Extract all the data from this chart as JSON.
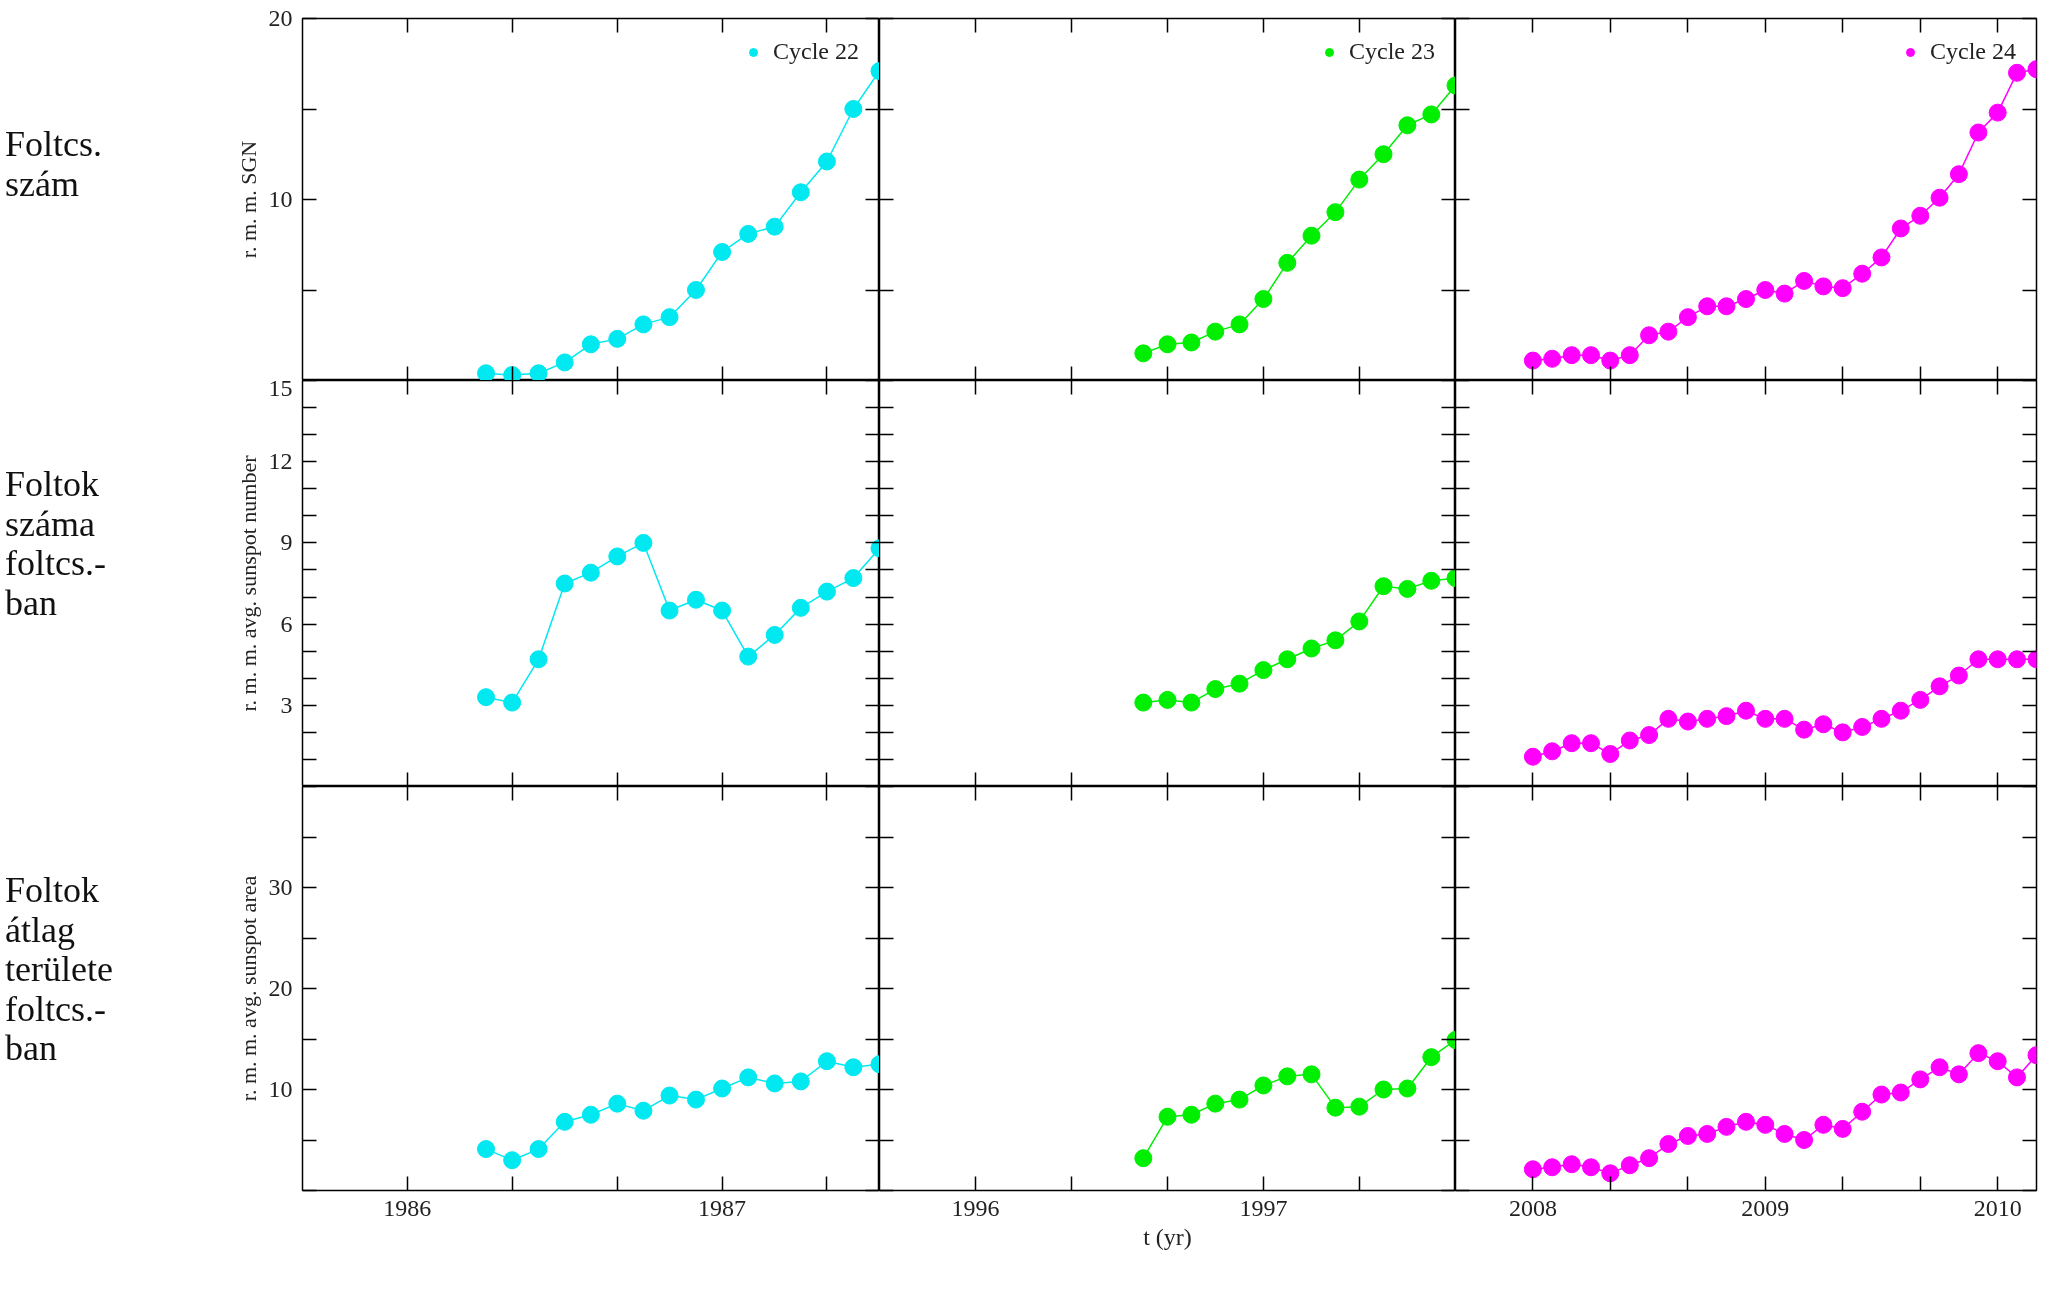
{
  "chart_data": [
    {
      "type": "line",
      "ylabel": "r. m. m. SGN",
      "annotations": [
        "Foltcs. szám"
      ],
      "marker": "circle",
      "grid": false,
      "legend": "top right",
      "tick_labels": "y",
      "xlim": [
        1985.667,
        1987.5
      ],
      "ylim": [
        0,
        20
      ],
      "xticks": [
        1986,
        {
          "value": 1986.333,
          "label": null
        },
        {
          "value": 1986.667,
          "label": null
        },
        1987,
        {
          "value": 1987.333,
          "label": null
        }
      ],
      "yticks": [
        {
          "value": 0,
          "label": null
        },
        {
          "value": 5,
          "label": null
        },
        10,
        {
          "value": 15,
          "label": null
        },
        20
      ],
      "x": [
        1986.25,
        1986.333,
        1986.417,
        1986.5,
        1986.583,
        1986.667,
        1986.75,
        1986.833,
        1986.917,
        1987,
        1987.083,
        1987.167,
        1987.25,
        1987.333,
        1987.417,
        1987.5
      ],
      "series": [
        {
          "name": "Cycle 22",
          "color": "#00e8f0",
          "values": [
            0.4,
            0.3,
            0.4,
            1.0,
            2.0,
            2.3,
            3.1,
            3.5,
            5.0,
            7.1,
            8.1,
            8.5,
            10.4,
            12.1,
            15.0,
            17.1
          ]
        }
      ]
    },
    {
      "type": "line",
      "marker": "circle",
      "grid": false,
      "legend": "top right",
      "tick_labels": false,
      "xlim": [
        1995.667,
        1997.667
      ],
      "ylim": [
        0,
        20
      ],
      "xticks": [
        1996,
        {
          "value": 1996.333,
          "label": null
        },
        {
          "value": 1996.667,
          "label": null
        },
        1997,
        {
          "value": 1997.333,
          "label": null
        }
      ],
      "yticks": [
        {
          "value": 0,
          "label": null
        },
        {
          "value": 5,
          "label": null
        },
        10,
        {
          "value": 15,
          "label": null
        },
        20
      ],
      "x": [
        1996.583,
        1996.667,
        1996.75,
        1996.833,
        1996.917,
        1997,
        1997.083,
        1997.167,
        1997.25,
        1997.333,
        1997.417,
        1997.5,
        1997.583,
        1997.667
      ],
      "series": [
        {
          "name": "Cycle 23",
          "color": "#00ee00",
          "values": [
            1.5,
            2.0,
            2.1,
            2.7,
            3.1,
            4.5,
            6.5,
            8.0,
            9.3,
            11.1,
            12.5,
            14.1,
            14.7,
            16.3
          ]
        }
      ]
    },
    {
      "type": "line",
      "marker": "circle",
      "grid": false,
      "legend": "top right",
      "tick_labels": false,
      "xlim": [
        2007.667,
        2010.167
      ],
      "ylim": [
        0,
        20
      ],
      "xticks": [
        2008,
        {
          "value": 2008.333,
          "label": null
        },
        {
          "value": 2008.667,
          "label": null
        },
        2009,
        {
          "value": 2009.333,
          "label": null
        },
        {
          "value": 2009.667,
          "label": null
        },
        2010
      ],
      "yticks": [
        {
          "value": 0,
          "label": null
        },
        {
          "value": 5,
          "label": null
        },
        10,
        {
          "value": 15,
          "label": null
        },
        20
      ],
      "x": [
        2008,
        2008.083,
        2008.167,
        2008.25,
        2008.333,
        2008.417,
        2008.5,
        2008.583,
        2008.667,
        2008.75,
        2008.833,
        2008.917,
        2009,
        2009.083,
        2009.167,
        2009.25,
        2009.333,
        2009.417,
        2009.5,
        2009.583,
        2009.667,
        2009.75,
        2009.833,
        2009.917,
        2010,
        2010.083,
        2010.167
      ],
      "series": [
        {
          "name": "Cycle 24",
          "color": "#ff00ff",
          "values": [
            1.1,
            1.2,
            1.4,
            1.4,
            1.1,
            1.4,
            2.5,
            2.7,
            3.5,
            4.1,
            4.1,
            4.5,
            5.0,
            4.8,
            5.5,
            5.2,
            5.1,
            5.9,
            6.8,
            8.4,
            9.1,
            10.1,
            11.4,
            13.7,
            14.8,
            17.0,
            17.2
          ]
        }
      ]
    },
    {
      "type": "line",
      "ylabel": "r. m. m. avg. sunspot number",
      "annotations": [
        "Foltok száma foltcs.-ban"
      ],
      "marker": "circle",
      "grid": false,
      "tick_labels": "y",
      "xlim": [
        1985.667,
        1987.5
      ],
      "ylim": [
        0,
        15
      ],
      "xticks": [
        1986,
        {
          "value": 1986.333,
          "label": null
        },
        {
          "value": 1986.667,
          "label": null
        },
        1987,
        {
          "value": 1987.333,
          "label": null
        }
      ],
      "yticks": [
        {
          "value": 0,
          "label": null
        },
        {
          "value": 1,
          "label": null
        },
        {
          "value": 2,
          "label": null
        },
        3,
        {
          "value": 4,
          "label": null
        },
        {
          "value": 5,
          "label": null
        },
        6,
        {
          "value": 7,
          "label": null
        },
        {
          "value": 8,
          "label": null
        },
        9,
        {
          "value": 10,
          "label": null
        },
        {
          "value": 11,
          "label": null
        },
        12,
        {
          "value": 13,
          "label": null
        },
        {
          "value": 14,
          "label": null
        },
        15
      ],
      "x": [
        1986.25,
        1986.333,
        1986.417,
        1986.5,
        1986.583,
        1986.667,
        1986.75,
        1986.833,
        1986.917,
        1987,
        1987.083,
        1987.167,
        1987.25,
        1987.333,
        1987.417,
        1987.5
      ],
      "series": [
        {
          "color": "#00e8f0",
          "values": [
            3.3,
            3.1,
            4.7,
            7.5,
            7.9,
            8.5,
            9.0,
            6.5,
            6.9,
            6.5,
            4.8,
            5.6,
            6.6,
            7.2,
            7.7,
            8.8
          ]
        }
      ]
    },
    {
      "type": "line",
      "marker": "circle",
      "grid": false,
      "tick_labels": false,
      "xlim": [
        1995.667,
        1997.667
      ],
      "ylim": [
        0,
        15
      ],
      "xticks": [
        1996,
        {
          "value": 1996.333,
          "label": null
        },
        {
          "value": 1996.667,
          "label": null
        },
        1997,
        {
          "value": 1997.333,
          "label": null
        }
      ],
      "yticks": [
        {
          "value": 0,
          "label": null
        },
        {
          "value": 1,
          "label": null
        },
        {
          "value": 2,
          "label": null
        },
        3,
        {
          "value": 4,
          "label": null
        },
        {
          "value": 5,
          "label": null
        },
        6,
        {
          "value": 7,
          "label": null
        },
        {
          "value": 8,
          "label": null
        },
        9,
        {
          "value": 10,
          "label": null
        },
        {
          "value": 11,
          "label": null
        },
        12,
        {
          "value": 13,
          "label": null
        },
        {
          "value": 14,
          "label": null
        },
        15
      ],
      "x": [
        1996.583,
        1996.667,
        1996.75,
        1996.833,
        1996.917,
        1997,
        1997.083,
        1997.167,
        1997.25,
        1997.333,
        1997.417,
        1997.5,
        1997.583,
        1997.667
      ],
      "series": [
        {
          "color": "#00ee00",
          "values": [
            3.1,
            3.2,
            3.1,
            3.6,
            3.8,
            4.3,
            4.7,
            5.1,
            5.4,
            6.1,
            7.4,
            7.3,
            7.6,
            7.7
          ]
        }
      ]
    },
    {
      "type": "line",
      "marker": "circle",
      "grid": false,
      "tick_labels": false,
      "xlim": [
        2007.667,
        2010.167
      ],
      "ylim": [
        0,
        15
      ],
      "xticks": [
        2008,
        {
          "value": 2008.333,
          "label": null
        },
        {
          "value": 2008.667,
          "label": null
        },
        2009,
        {
          "value": 2009.333,
          "label": null
        },
        {
          "value": 2009.667,
          "label": null
        },
        2010
      ],
      "yticks": [
        {
          "value": 0,
          "label": null
        },
        {
          "value": 1,
          "label": null
        },
        {
          "value": 2,
          "label": null
        },
        3,
        {
          "value": 4,
          "label": null
        },
        {
          "value": 5,
          "label": null
        },
        6,
        {
          "value": 7,
          "label": null
        },
        {
          "value": 8,
          "label": null
        },
        9,
        {
          "value": 10,
          "label": null
        },
        {
          "value": 11,
          "label": null
        },
        12,
        {
          "value": 13,
          "label": null
        },
        {
          "value": 14,
          "label": null
        },
        15
      ],
      "x": [
        2008,
        2008.083,
        2008.167,
        2008.25,
        2008.333,
        2008.417,
        2008.5,
        2008.583,
        2008.667,
        2008.75,
        2008.833,
        2008.917,
        2009,
        2009.083,
        2009.167,
        2009.25,
        2009.333,
        2009.417,
        2009.5,
        2009.583,
        2009.667,
        2009.75,
        2009.833,
        2009.917,
        2010,
        2010.083,
        2010.167
      ],
      "series": [
        {
          "color": "#ff00ff",
          "values": [
            1.1,
            1.3,
            1.6,
            1.6,
            1.2,
            1.7,
            1.9,
            2.5,
            2.4,
            2.5,
            2.6,
            2.8,
            2.5,
            2.5,
            2.1,
            2.3,
            2.0,
            2.2,
            2.5,
            2.8,
            3.2,
            3.7,
            4.1,
            4.7,
            4.7,
            4.7,
            4.7
          ]
        }
      ]
    },
    {
      "type": "line",
      "ylabel": "r. m. m. avg. sunspot area",
      "annotations": [
        "Foltok átlag területe foltcs.-ban"
      ],
      "marker": "circle",
      "grid": false,
      "xlim": [
        1985.667,
        1987.5
      ],
      "ylim": [
        0,
        40
      ],
      "xticks": [
        1986,
        {
          "value": 1986.333,
          "label": null
        },
        {
          "value": 1986.667,
          "label": null
        },
        1987,
        {
          "value": 1987.333,
          "label": null
        }
      ],
      "yticks": [
        {
          "value": 0,
          "label": null
        },
        {
          "value": 5,
          "label": null
        },
        10,
        {
          "value": 15,
          "label": null
        },
        20,
        {
          "value": 25,
          "label": null
        },
        30,
        {
          "value": 35,
          "label": null
        },
        {
          "value": 40,
          "label": null
        }
      ],
      "x": [
        1986.25,
        1986.333,
        1986.417,
        1986.5,
        1986.583,
        1986.667,
        1986.75,
        1986.833,
        1986.917,
        1987,
        1987.083,
        1987.167,
        1987.25,
        1987.333,
        1987.417,
        1987.5
      ],
      "series": [
        {
          "color": "#00e8f0",
          "values": [
            4.1,
            3.0,
            4.1,
            6.8,
            7.5,
            8.6,
            7.9,
            9.4,
            9.0,
            10.1,
            11.2,
            10.6,
            10.8,
            12.8,
            12.2,
            12.5
          ]
        }
      ]
    },
    {
      "type": "line",
      "xlabel": "t (yr)",
      "marker": "circle",
      "grid": false,
      "tick_labels": "x",
      "xlim": [
        1995.667,
        1997.667
      ],
      "ylim": [
        0,
        40
      ],
      "xticks": [
        1996,
        {
          "value": 1996.333,
          "label": null
        },
        {
          "value": 1996.667,
          "label": null
        },
        1997,
        {
          "value": 1997.333,
          "label": null
        }
      ],
      "yticks": [
        {
          "value": 0,
          "label": null
        },
        {
          "value": 5,
          "label": null
        },
        10,
        {
          "value": 15,
          "label": null
        },
        20,
        {
          "value": 25,
          "label": null
        },
        30,
        {
          "value": 35,
          "label": null
        },
        {
          "value": 40,
          "label": null
        }
      ],
      "x": [
        1996.583,
        1996.667,
        1996.75,
        1996.833,
        1996.917,
        1997,
        1997.083,
        1997.167,
        1997.25,
        1997.333,
        1997.417,
        1997.5,
        1997.583,
        1997.667
      ],
      "series": [
        {
          "color": "#00ee00",
          "values": [
            3.2,
            7.3,
            7.5,
            8.6,
            9.0,
            10.4,
            11.3,
            11.5,
            8.2,
            8.3,
            10.0,
            10.1,
            13.2,
            14.9
          ]
        }
      ]
    },
    {
      "type": "line",
      "marker": "circle",
      "grid": false,
      "tick_labels": "x",
      "xlim": [
        2007.667,
        2010.167
      ],
      "ylim": [
        0,
        40
      ],
      "xticks": [
        2008,
        {
          "value": 2008.333,
          "label": null
        },
        {
          "value": 2008.667,
          "label": null
        },
        2009,
        {
          "value": 2009.333,
          "label": null
        },
        {
          "value": 2009.667,
          "label": null
        },
        2010
      ],
      "yticks": [
        {
          "value": 0,
          "label": null
        },
        {
          "value": 5,
          "label": null
        },
        10,
        {
          "value": 15,
          "label": null
        },
        20,
        {
          "value": 25,
          "label": null
        },
        30,
        {
          "value": 35,
          "label": null
        },
        {
          "value": 40,
          "label": null
        }
      ],
      "x": [
        2008,
        2008.083,
        2008.167,
        2008.25,
        2008.333,
        2008.417,
        2008.5,
        2008.583,
        2008.667,
        2008.75,
        2008.833,
        2008.917,
        2009,
        2009.083,
        2009.167,
        2009.25,
        2009.333,
        2009.417,
        2009.5,
        2009.583,
        2009.667,
        2009.75,
        2009.833,
        2009.917,
        2010,
        2010.083,
        2010.167
      ],
      "series": [
        {
          "color": "#ff00ff",
          "values": [
            2.1,
            2.3,
            2.6,
            2.3,
            1.7,
            2.5,
            3.2,
            4.6,
            5.4,
            5.6,
            6.3,
            6.8,
            6.5,
            5.6,
            5.0,
            6.5,
            6.1,
            7.8,
            9.5,
            9.7,
            11.0,
            12.2,
            11.5,
            13.6,
            12.8,
            11.2,
            13.4
          ]
        }
      ]
    }
  ]
}
